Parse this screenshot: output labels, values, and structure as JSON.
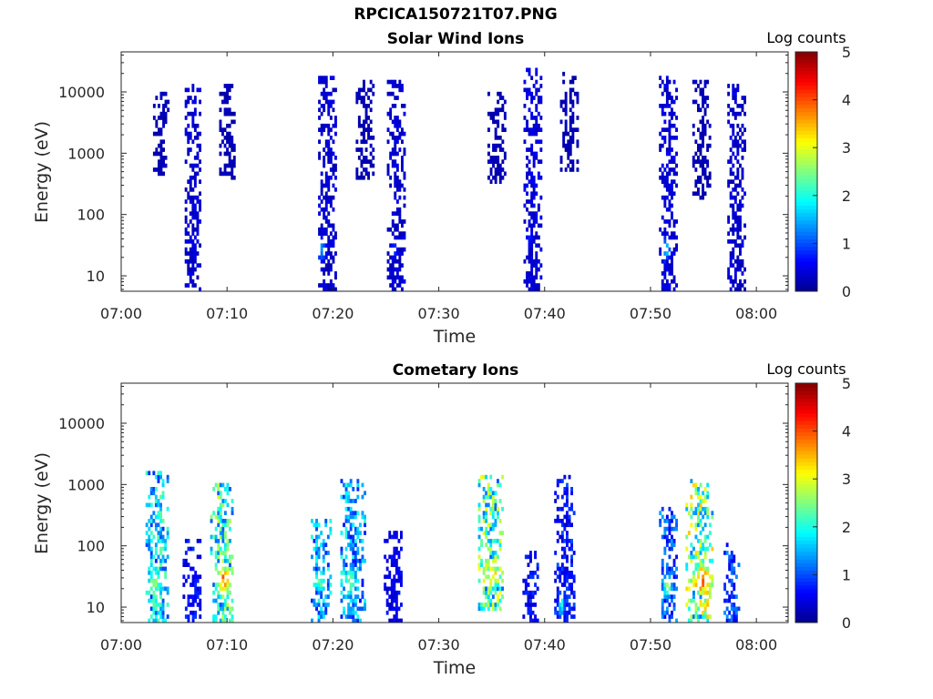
{
  "figure": {
    "title": "RPCICA150721T07.PNG"
  },
  "colormap": {
    "name": "jet",
    "stops": [
      "#00008f",
      "#0000ff",
      "#0080ff",
      "#00ffff",
      "#80ff80",
      "#ffff00",
      "#ff8000",
      "#ff0000",
      "#800000"
    ]
  },
  "chart_data": [
    {
      "type": "heatmap",
      "title": "Solar Wind Ions",
      "xlabel": "Time",
      "ylabel": "Energy (eV)",
      "x_ticks": [
        "07:00",
        "07:10",
        "07:20",
        "07:30",
        "07:40",
        "07:50",
        "08:00"
      ],
      "xlim_minutes": [
        0,
        63
      ],
      "y_ticks": [
        "10",
        "100",
        "1000",
        "10000"
      ],
      "y_tick_values": [
        10,
        100,
        1000,
        10000
      ],
      "ylim": [
        5.6,
        45000
      ],
      "y_scale": "log",
      "colorbar": {
        "title": "Log counts",
        "ticks": [
          "0",
          "1",
          "2",
          "3",
          "4",
          "5"
        ],
        "range": [
          0,
          5
        ]
      },
      "bursts": [
        {
          "t": 3.7,
          "w": 1.4,
          "e_min": 450,
          "e_max": 10000,
          "log_counts": 0.2
        },
        {
          "t": 6.7,
          "w": 1.4,
          "e_min": 6,
          "e_max": 13000,
          "log_counts": 0.35
        },
        {
          "t": 10.0,
          "w": 1.5,
          "e_min": 380,
          "e_max": 12000,
          "log_counts": 0.2
        },
        {
          "t": 19.4,
          "w": 1.6,
          "e_min": 6,
          "e_max": 18000,
          "log_counts": 0.35
        },
        {
          "t": 23.0,
          "w": 1.7,
          "e_min": 400,
          "e_max": 14000,
          "log_counts": 0.2
        },
        {
          "t": 25.9,
          "w": 1.6,
          "e_min": 6,
          "e_max": 14000,
          "log_counts": 0.35
        },
        {
          "t": 35.4,
          "w": 1.6,
          "e_min": 330,
          "e_max": 9000,
          "log_counts": 0.2
        },
        {
          "t": 38.8,
          "w": 1.6,
          "e_min": 6,
          "e_max": 24000,
          "log_counts": 0.4
        },
        {
          "t": 42.3,
          "w": 1.7,
          "e_min": 550,
          "e_max": 19000,
          "log_counts": 0.2
        },
        {
          "t": 51.6,
          "w": 1.6,
          "e_min": 6,
          "e_max": 18000,
          "log_counts": 0.4
        },
        {
          "t": 54.8,
          "w": 1.7,
          "e_min": 200,
          "e_max": 14000,
          "log_counts": 0.2
        },
        {
          "t": 58.1,
          "w": 1.7,
          "e_min": 6,
          "e_max": 13000,
          "log_counts": 0.35
        }
      ],
      "hotspots": [
        {
          "t": 18.8,
          "e": 25,
          "dt": 0.5,
          "de": 1.6,
          "log_counts": 1.4
        },
        {
          "t": 25.7,
          "e": 25,
          "dt": 0.4,
          "de": 1.4,
          "log_counts": 0.9
        },
        {
          "t": 38.4,
          "e": 40,
          "dt": 0.4,
          "de": 1.5,
          "log_counts": 0.8
        },
        {
          "t": 51.3,
          "e": 25,
          "dt": 0.5,
          "de": 1.6,
          "log_counts": 1.5
        }
      ]
    },
    {
      "type": "heatmap",
      "title": "Cometary Ions",
      "xlabel": "Time",
      "ylabel": "Energy (eV)",
      "x_ticks": [
        "07:00",
        "07:10",
        "07:20",
        "07:30",
        "07:40",
        "07:50",
        "08:00"
      ],
      "xlim_minutes": [
        0,
        63
      ],
      "y_ticks": [
        "10",
        "100",
        "1000",
        "10000"
      ],
      "y_tick_values": [
        10,
        100,
        1000,
        10000
      ],
      "ylim": [
        5.6,
        45000
      ],
      "y_scale": "log",
      "colorbar": {
        "title": "Log counts",
        "ticks": [
          "0",
          "1",
          "2",
          "3",
          "4",
          "5"
        ],
        "range": [
          0,
          5
        ]
      },
      "bursts": [
        {
          "t": 3.3,
          "w": 2.0,
          "e_min": 6,
          "e_max": 1500,
          "log_counts": 1.6
        },
        {
          "t": 6.6,
          "w": 1.6,
          "e_min": 6,
          "e_max": 120,
          "log_counts": 0.6
        },
        {
          "t": 9.5,
          "w": 2.2,
          "e_min": 6,
          "e_max": 1000,
          "log_counts": 2.0
        },
        {
          "t": 18.8,
          "w": 1.8,
          "e_min": 6,
          "e_max": 240,
          "log_counts": 1.4
        },
        {
          "t": 21.8,
          "w": 2.2,
          "e_min": 6,
          "e_max": 1200,
          "log_counts": 1.4
        },
        {
          "t": 25.6,
          "w": 1.6,
          "e_min": 6,
          "e_max": 160,
          "log_counts": 0.5
        },
        {
          "t": 34.8,
          "w": 2.2,
          "e_min": 10,
          "e_max": 1300,
          "log_counts": 2.1
        },
        {
          "t": 38.6,
          "w": 1.4,
          "e_min": 6,
          "e_max": 80,
          "log_counts": 0.6
        },
        {
          "t": 41.8,
          "w": 1.8,
          "e_min": 6,
          "e_max": 1300,
          "log_counts": 0.7
        },
        {
          "t": 51.6,
          "w": 1.6,
          "e_min": 6,
          "e_max": 400,
          "log_counts": 1.0
        },
        {
          "t": 54.6,
          "w": 2.6,
          "e_min": 6,
          "e_max": 1200,
          "log_counts": 2.3
        },
        {
          "t": 57.6,
          "w": 1.4,
          "e_min": 6,
          "e_max": 100,
          "log_counts": 0.9
        }
      ],
      "hotspots": [
        {
          "t": 9.6,
          "e": 25,
          "dt": 0.9,
          "de": 1.9,
          "log_counts": 3.6
        },
        {
          "t": 35.0,
          "e": 30,
          "dt": 1.2,
          "de": 1.6,
          "log_counts": 3.1
        },
        {
          "t": 54.8,
          "e": 25,
          "dt": 1.2,
          "de": 1.8,
          "log_counts": 3.8
        },
        {
          "t": 3.1,
          "e": 25,
          "dt": 0.8,
          "de": 1.7,
          "log_counts": 2.6
        },
        {
          "t": 21.5,
          "e": 25,
          "dt": 0.7,
          "de": 2.0,
          "log_counts": 2.3
        },
        {
          "t": 18.7,
          "e": 25,
          "dt": 0.7,
          "de": 1.6,
          "log_counts": 2.4
        },
        {
          "t": 41.5,
          "e": 10,
          "dt": 0.3,
          "de": 1.6,
          "log_counts": 2.0
        },
        {
          "t": 51.5,
          "e": 20,
          "dt": 0.5,
          "de": 1.6,
          "log_counts": 2.4
        }
      ]
    }
  ]
}
